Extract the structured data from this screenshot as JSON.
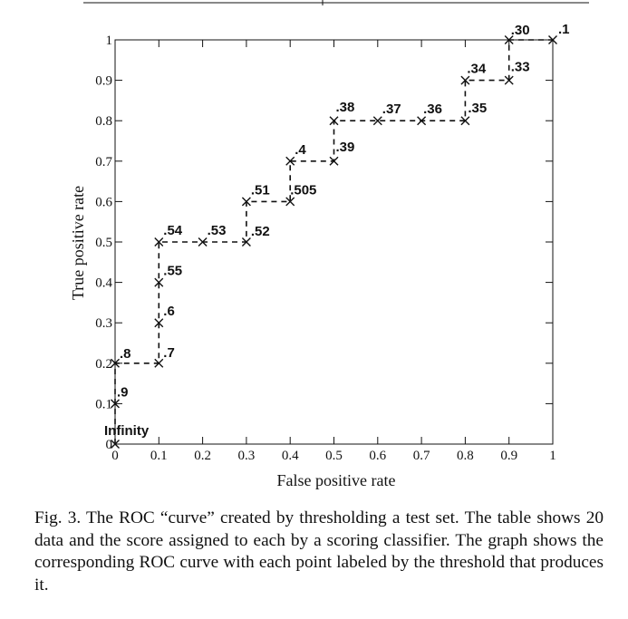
{
  "chart_data": {
    "type": "line",
    "xlabel": "False positive rate",
    "ylabel": "True positive rate",
    "xlim": [
      0,
      1
    ],
    "ylim": [
      0,
      1
    ],
    "x_ticks": [
      "0",
      "0.1",
      "0.2",
      "0.3",
      "0.4",
      "0.5",
      "0.6",
      "0.7",
      "0.8",
      "0.9",
      "1"
    ],
    "y_ticks": [
      "0",
      "0.1",
      "0.2",
      "0.3",
      "0.4",
      "0.5",
      "0.6",
      "0.7",
      "0.8",
      "0.9",
      "1"
    ],
    "grid": false,
    "line_style": "dashed",
    "marker": "x",
    "points": [
      {
        "x": 0.0,
        "y": 0.0,
        "label": "Infinity"
      },
      {
        "x": 0.0,
        "y": 0.1,
        "label": ".9"
      },
      {
        "x": 0.0,
        "y": 0.2,
        "label": ".8"
      },
      {
        "x": 0.1,
        "y": 0.2,
        "label": ".7"
      },
      {
        "x": 0.1,
        "y": 0.3,
        "label": ".6"
      },
      {
        "x": 0.1,
        "y": 0.4,
        "label": ".55"
      },
      {
        "x": 0.1,
        "y": 0.5,
        "label": ".54"
      },
      {
        "x": 0.2,
        "y": 0.5,
        "label": ".53"
      },
      {
        "x": 0.3,
        "y": 0.5,
        "label": ".52"
      },
      {
        "x": 0.3,
        "y": 0.6,
        "label": ".51"
      },
      {
        "x": 0.4,
        "y": 0.6,
        "label": ".505"
      },
      {
        "x": 0.4,
        "y": 0.7,
        "label": ".4"
      },
      {
        "x": 0.5,
        "y": 0.7,
        "label": ".39"
      },
      {
        "x": 0.5,
        "y": 0.8,
        "label": ".38"
      },
      {
        "x": 0.6,
        "y": 0.8,
        "label": ".37"
      },
      {
        "x": 0.7,
        "y": 0.8,
        "label": ".36"
      },
      {
        "x": 0.8,
        "y": 0.8,
        "label": ".35"
      },
      {
        "x": 0.8,
        "y": 0.9,
        "label": ".34"
      },
      {
        "x": 0.9,
        "y": 0.9,
        "label": ".33"
      },
      {
        "x": 0.9,
        "y": 1.0,
        "label": ".30"
      },
      {
        "x": 1.0,
        "y": 1.0,
        "label": ".1"
      }
    ]
  },
  "caption": "Fig. 3. The ROC “curve” created by thresholding a test set. The table shows 20 data and the score assigned to each by a scoring classifier. The graph shows the corresponding ROC curve with each point labeled by the threshold that produces it."
}
